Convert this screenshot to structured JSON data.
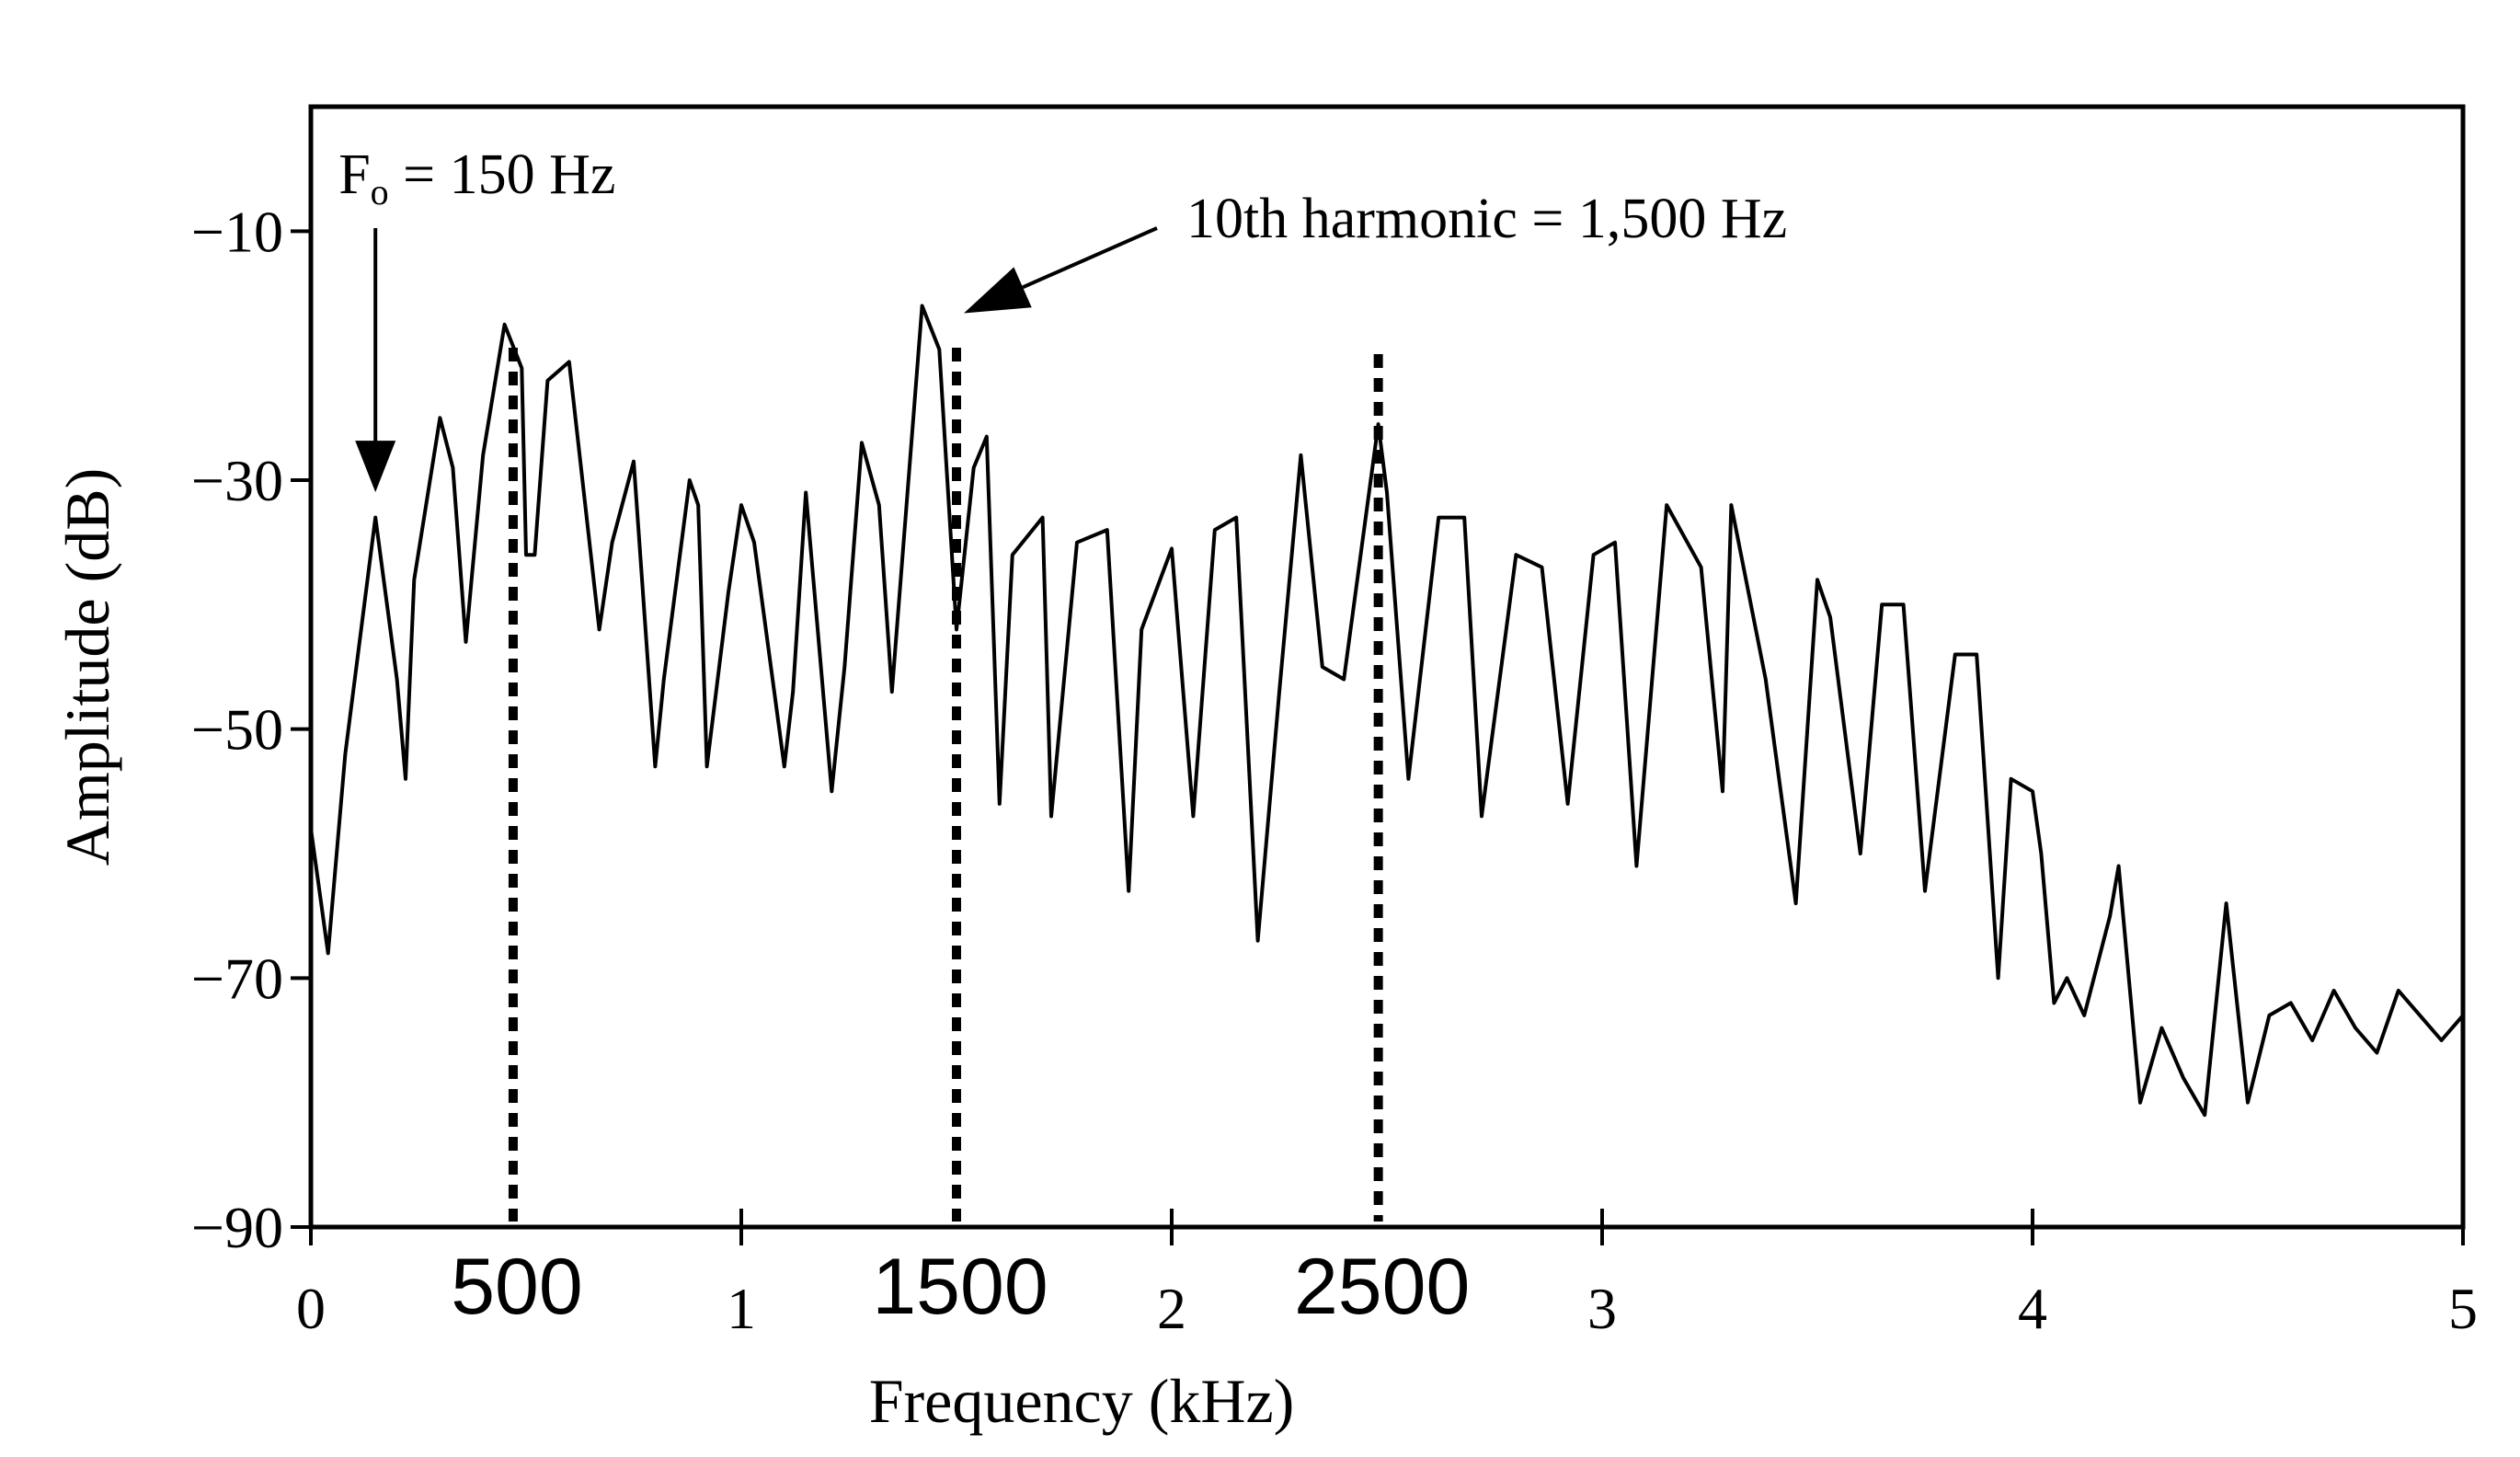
{
  "chart_data": {
    "type": "line",
    "xlabel": "Frequency (kHz)",
    "ylabel": "Amplitude (dB)",
    "xlim": [
      0,
      5
    ],
    "ylim": [
      -90,
      0
    ],
    "x_ticks": [
      0,
      1,
      2,
      3,
      4,
      5
    ],
    "x_tick_labels": [
      "0",
      "1",
      "2",
      "3",
      "4",
      "5"
    ],
    "y_ticks": [
      -10,
      -30,
      -50,
      -70,
      -90
    ],
    "y_tick_labels": [
      "−10",
      "−30",
      "−50",
      "−70",
      "−90"
    ],
    "grid": false,
    "line_color": "#000000",
    "marker_lines": [
      {
        "x": 0.47,
        "label": "500"
      },
      {
        "x": 1.5,
        "label": "1500"
      },
      {
        "x": 2.48,
        "label": "2500"
      }
    ],
    "annotations": {
      "f0": {
        "text_main": "F",
        "text_sub": "o",
        "text_rest": " = 150 Hz",
        "x": 0.15,
        "y": -32
      },
      "harmonic10": {
        "text": "10th harmonic = 1,500 Hz",
        "x": 1.5,
        "y": -16
      }
    },
    "series": [
      {
        "x": [
          0,
          0.04,
          0.08,
          0.15,
          0.2,
          0.22,
          0.24,
          0.3,
          0.33,
          0.36,
          0.4,
          0.45,
          0.49,
          0.5,
          0.52,
          0.55,
          0.6,
          0.67,
          0.67,
          0.7,
          0.75,
          0.8,
          0.82,
          0.88,
          0.9,
          0.92,
          0.97,
          1.0,
          1.03,
          1.1,
          1.12,
          1.15,
          1.21,
          1.24,
          1.28,
          1.32,
          1.35,
          1.42,
          1.46,
          1.5,
          1.54,
          1.57,
          1.6,
          1.63,
          1.7,
          1.72,
          1.78,
          1.85,
          1.9,
          1.93,
          2.0,
          2.05,
          2.1,
          2.15,
          2.2,
          2.25,
          2.3,
          2.35,
          2.4,
          2.48,
          2.5,
          2.55,
          2.62,
          2.68,
          2.72,
          2.8,
          2.86,
          2.92,
          2.98,
          3.03,
          3.08,
          3.15,
          3.23,
          3.28,
          3.3,
          3.38,
          3.45,
          3.5,
          3.53,
          3.6,
          3.65,
          3.7,
          3.75,
          3.82,
          3.87,
          3.92,
          3.95,
          4.0,
          4.02,
          4.05,
          4.08,
          4.12,
          4.18,
          4.2,
          4.25,
          4.3,
          4.35,
          4.4,
          4.45,
          4.5,
          4.55,
          4.6,
          4.65,
          4.7,
          4.75,
          4.8,
          4.85,
          4.9,
          4.95,
          5.0
        ],
        "y": [
          -58,
          -68,
          -52,
          -33,
          -46,
          -54,
          -38,
          -25,
          -29,
          -43,
          -28,
          -17.5,
          -21,
          -36,
          -36,
          -22,
          -20.5,
          -42,
          -42,
          -35,
          -28.5,
          -53,
          -46,
          -30,
          -32,
          -53,
          -39,
          -32,
          -35,
          -53,
          -47,
          -31,
          -55,
          -45,
          -27,
          -32,
          -47,
          -16,
          -19.5,
          -42,
          -29,
          -26.5,
          -56,
          -36,
          -33,
          -57,
          -35,
          -34,
          -63,
          -42,
          -35.5,
          -57,
          -34,
          -33,
          -67,
          -47,
          -28,
          -45,
          -46,
          -25.5,
          -31,
          -54,
          -33,
          -33,
          -57,
          -36,
          -37,
          -56,
          -36,
          -35,
          -61,
          -32,
          -37,
          -55,
          -32,
          -46,
          -64,
          -38,
          -41,
          -60,
          -40,
          -40,
          -63,
          -44,
          -44,
          -70,
          -54,
          -55,
          -60,
          -72,
          -70,
          -73,
          -65,
          -61,
          -80,
          -74,
          -78,
          -81,
          -64,
          -80,
          -73,
          -72,
          -75,
          -71,
          -74,
          -76,
          -71,
          -73,
          -75,
          -73
        ]
      }
    ]
  }
}
